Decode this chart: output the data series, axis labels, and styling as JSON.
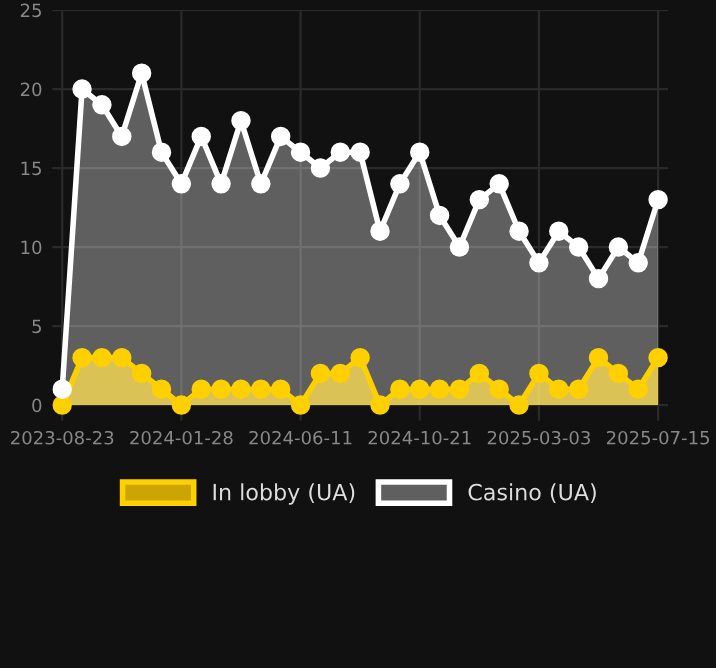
{
  "chart_data": {
    "type": "area",
    "categories": [
      "2023-08-23",
      null,
      null,
      null,
      null,
      null,
      "2024-01-28",
      null,
      null,
      null,
      null,
      null,
      "2024-06-11",
      null,
      null,
      null,
      null,
      null,
      "2024-10-21",
      null,
      null,
      null,
      null,
      null,
      "2025-03-03",
      null,
      null,
      null,
      null,
      null,
      "2025-07-15"
    ],
    "series": [
      {
        "name": "In lobby (UA)",
        "color": "#ffd000",
        "values": [
          0,
          3,
          3,
          3,
          2,
          1,
          0,
          1,
          1,
          1,
          1,
          1,
          0,
          2,
          2,
          3,
          0,
          1,
          1,
          1,
          1,
          2,
          1,
          0,
          2,
          1,
          1,
          3,
          2,
          1,
          3
        ]
      },
      {
        "name": "Casino (UA)",
        "color": "#ffffff",
        "values": [
          1,
          20,
          19,
          17,
          21,
          16,
          14,
          17,
          14,
          18,
          14,
          17,
          16,
          15,
          16,
          16,
          11,
          14,
          16,
          12,
          10,
          13,
          14,
          11,
          9,
          11,
          10,
          8,
          10,
          9,
          13
        ]
      }
    ],
    "ylim": [
      -1,
      25
    ],
    "yticks": [
      0,
      5,
      10,
      15,
      20,
      25
    ],
    "grid": true,
    "legend": "bottom",
    "marker": "circle",
    "line_style": "solid"
  }
}
